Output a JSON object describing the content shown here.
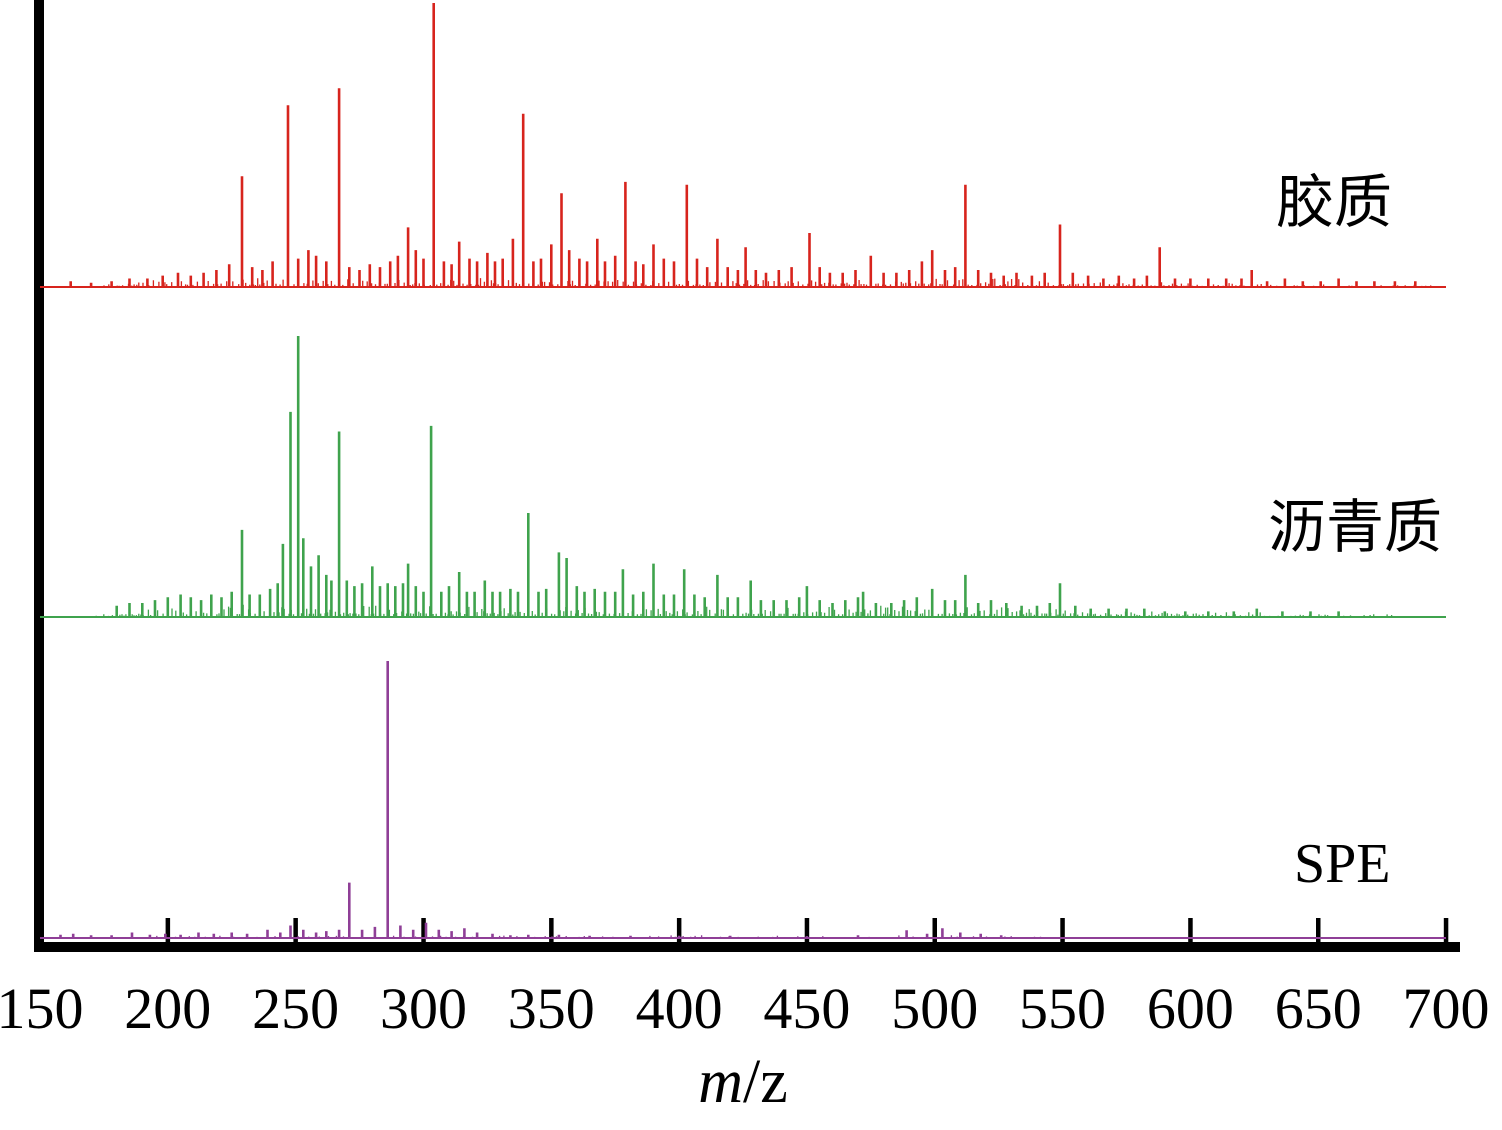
{
  "chart_data": {
    "type": "line",
    "subtype": "stacked-mass-spectra",
    "title": "",
    "xlabel": "m/z",
    "ylabel": "",
    "x_range": [
      150,
      700
    ],
    "x_ticks": [
      150,
      200,
      250,
      300,
      350,
      400,
      450,
      500,
      550,
      600,
      650,
      700
    ],
    "grid": false,
    "axis_color": "#000000",
    "legend_position": "right-inline",
    "series": [
      {
        "name": "胶质",
        "color": "#d7241d",
        "label_color": "#000000",
        "base_peak_mz": 304,
        "noise": {
          "seed": 7,
          "start": 160,
          "end": 695,
          "step": 1.2,
          "max": 0.035
        },
        "peaks": [
          [
            162,
            0.02
          ],
          [
            170,
            0.015
          ],
          [
            178,
            0.02
          ],
          [
            185,
            0.03
          ],
          [
            192,
            0.03
          ],
          [
            198,
            0.04
          ],
          [
            204,
            0.05
          ],
          [
            209,
            0.04
          ],
          [
            214,
            0.05
          ],
          [
            219,
            0.06
          ],
          [
            224,
            0.08
          ],
          [
            229,
            0.39
          ],
          [
            233,
            0.07
          ],
          [
            237,
            0.06
          ],
          [
            241,
            0.09
          ],
          [
            247,
            0.64
          ],
          [
            251,
            0.1
          ],
          [
            255,
            0.13
          ],
          [
            258,
            0.11
          ],
          [
            262,
            0.09
          ],
          [
            267,
            0.7
          ],
          [
            271,
            0.07
          ],
          [
            275,
            0.06
          ],
          [
            279,
            0.08
          ],
          [
            283,
            0.07
          ],
          [
            287,
            0.09
          ],
          [
            290,
            0.11
          ],
          [
            294,
            0.21
          ],
          [
            297,
            0.13
          ],
          [
            300,
            0.1
          ],
          [
            304,
            1.0
          ],
          [
            308,
            0.09
          ],
          [
            311,
            0.08
          ],
          [
            314,
            0.16
          ],
          [
            318,
            0.1
          ],
          [
            321,
            0.09
          ],
          [
            325,
            0.12
          ],
          [
            328,
            0.09
          ],
          [
            331,
            0.1
          ],
          [
            335,
            0.17
          ],
          [
            339,
            0.61
          ],
          [
            343,
            0.09
          ],
          [
            346,
            0.1
          ],
          [
            350,
            0.15
          ],
          [
            354,
            0.33
          ],
          [
            357,
            0.13
          ],
          [
            361,
            0.1
          ],
          [
            364,
            0.09
          ],
          [
            368,
            0.17
          ],
          [
            371,
            0.09
          ],
          [
            375,
            0.11
          ],
          [
            379,
            0.37
          ],
          [
            383,
            0.09
          ],
          [
            386,
            0.08
          ],
          [
            390,
            0.15
          ],
          [
            394,
            0.1
          ],
          [
            398,
            0.09
          ],
          [
            403,
            0.36
          ],
          [
            407,
            0.1
          ],
          [
            411,
            0.07
          ],
          [
            415,
            0.17
          ],
          [
            419,
            0.07
          ],
          [
            423,
            0.06
          ],
          [
            426,
            0.14
          ],
          [
            430,
            0.06
          ],
          [
            434,
            0.05
          ],
          [
            439,
            0.06
          ],
          [
            444,
            0.07
          ],
          [
            451,
            0.19
          ],
          [
            455,
            0.07
          ],
          [
            459,
            0.05
          ],
          [
            464,
            0.05
          ],
          [
            469,
            0.06
          ],
          [
            475,
            0.11
          ],
          [
            480,
            0.05
          ],
          [
            485,
            0.05
          ],
          [
            490,
            0.06
          ],
          [
            495,
            0.09
          ],
          [
            499,
            0.13
          ],
          [
            504,
            0.06
          ],
          [
            508,
            0.07
          ],
          [
            512,
            0.36
          ],
          [
            517,
            0.06
          ],
          [
            522,
            0.05
          ],
          [
            527,
            0.04
          ],
          [
            532,
            0.05
          ],
          [
            538,
            0.04
          ],
          [
            543,
            0.05
          ],
          [
            549,
            0.22
          ],
          [
            554,
            0.05
          ],
          [
            560,
            0.04
          ],
          [
            566,
            0.03
          ],
          [
            572,
            0.04
          ],
          [
            578,
            0.03
          ],
          [
            583,
            0.04
          ],
          [
            588,
            0.14
          ],
          [
            594,
            0.03
          ],
          [
            600,
            0.03
          ],
          [
            607,
            0.03
          ],
          [
            614,
            0.03
          ],
          [
            620,
            0.03
          ],
          [
            624,
            0.06
          ],
          [
            630,
            0.02
          ],
          [
            637,
            0.03
          ],
          [
            644,
            0.02
          ],
          [
            651,
            0.02
          ],
          [
            658,
            0.03
          ],
          [
            665,
            0.02
          ],
          [
            672,
            0.02
          ],
          [
            680,
            0.02
          ],
          [
            688,
            0.02
          ]
        ]
      },
      {
        "name": "沥青质",
        "color": "#3fa34d",
        "label_color": "#000000",
        "base_peak_mz": 251,
        "noise": {
          "seed": 13,
          "start": 172,
          "end": 680,
          "step": 1.1,
          "max": 0.045
        },
        "peaks": [
          [
            180,
            0.04
          ],
          [
            185,
            0.05
          ],
          [
            190,
            0.05
          ],
          [
            195,
            0.06
          ],
          [
            200,
            0.07
          ],
          [
            205,
            0.08
          ],
          [
            209,
            0.07
          ],
          [
            213,
            0.06
          ],
          [
            217,
            0.08
          ],
          [
            221,
            0.07
          ],
          [
            225,
            0.09
          ],
          [
            229,
            0.31
          ],
          [
            232,
            0.08
          ],
          [
            236,
            0.08
          ],
          [
            240,
            0.1
          ],
          [
            243,
            0.12
          ],
          [
            245,
            0.26
          ],
          [
            248,
            0.73
          ],
          [
            251,
            1.0
          ],
          [
            253,
            0.28
          ],
          [
            256,
            0.18
          ],
          [
            259,
            0.22
          ],
          [
            262,
            0.15
          ],
          [
            264,
            0.13
          ],
          [
            267,
            0.66
          ],
          [
            270,
            0.13
          ],
          [
            273,
            0.11
          ],
          [
            276,
            0.12
          ],
          [
            280,
            0.18
          ],
          [
            283,
            0.11
          ],
          [
            286,
            0.12
          ],
          [
            289,
            0.11
          ],
          [
            292,
            0.12
          ],
          [
            294,
            0.19
          ],
          [
            297,
            0.11
          ],
          [
            300,
            0.09
          ],
          [
            303,
            0.68
          ],
          [
            307,
            0.09
          ],
          [
            310,
            0.11
          ],
          [
            314,
            0.16
          ],
          [
            317,
            0.09
          ],
          [
            320,
            0.09
          ],
          [
            324,
            0.13
          ],
          [
            327,
            0.09
          ],
          [
            330,
            0.09
          ],
          [
            334,
            0.1
          ],
          [
            337,
            0.09
          ],
          [
            341,
            0.37
          ],
          [
            345,
            0.09
          ],
          [
            348,
            0.1
          ],
          [
            353,
            0.23
          ],
          [
            356,
            0.21
          ],
          [
            360,
            0.11
          ],
          [
            363,
            0.09
          ],
          [
            367,
            0.1
          ],
          [
            371,
            0.09
          ],
          [
            375,
            0.09
          ],
          [
            378,
            0.17
          ],
          [
            382,
            0.08
          ],
          [
            386,
            0.09
          ],
          [
            390,
            0.19
          ],
          [
            394,
            0.08
          ],
          [
            398,
            0.08
          ],
          [
            402,
            0.17
          ],
          [
            406,
            0.08
          ],
          [
            410,
            0.07
          ],
          [
            415,
            0.15
          ],
          [
            419,
            0.07
          ],
          [
            423,
            0.07
          ],
          [
            428,
            0.13
          ],
          [
            432,
            0.06
          ],
          [
            437,
            0.06
          ],
          [
            442,
            0.06
          ],
          [
            447,
            0.07
          ],
          [
            450,
            0.11
          ],
          [
            455,
            0.06
          ],
          [
            460,
            0.05
          ],
          [
            465,
            0.06
          ],
          [
            470,
            0.07
          ],
          [
            472,
            0.09
          ],
          [
            477,
            0.05
          ],
          [
            483,
            0.05
          ],
          [
            488,
            0.06
          ],
          [
            493,
            0.07
          ],
          [
            499,
            0.1
          ],
          [
            504,
            0.06
          ],
          [
            508,
            0.06
          ],
          [
            512,
            0.15
          ],
          [
            517,
            0.05
          ],
          [
            522,
            0.06
          ],
          [
            528,
            0.05
          ],
          [
            534,
            0.04
          ],
          [
            540,
            0.04
          ],
          [
            545,
            0.05
          ],
          [
            549,
            0.12
          ],
          [
            555,
            0.04
          ],
          [
            561,
            0.03
          ],
          [
            568,
            0.03
          ],
          [
            575,
            0.03
          ],
          [
            582,
            0.03
          ],
          [
            590,
            0.02
          ],
          [
            598,
            0.02
          ],
          [
            607,
            0.02
          ],
          [
            617,
            0.02
          ],
          [
            626,
            0.03
          ],
          [
            636,
            0.02
          ],
          [
            647,
            0.02
          ],
          [
            658,
            0.02
          ]
        ]
      },
      {
        "name": "SPE",
        "color": "#8f3f97",
        "label_color": "#000000",
        "base_peak_mz": 286,
        "noise": {
          "seed": 21,
          "start": 155,
          "end": 545,
          "step": 2.2,
          "max": 0.012
        },
        "peaks": [
          [
            158,
            0.012
          ],
          [
            163,
            0.015
          ],
          [
            170,
            0.01
          ],
          [
            178,
            0.01
          ],
          [
            186,
            0.02
          ],
          [
            193,
            0.012
          ],
          [
            199,
            0.015
          ],
          [
            205,
            0.012
          ],
          [
            212,
            0.02
          ],
          [
            218,
            0.015
          ],
          [
            225,
            0.02
          ],
          [
            231,
            0.015
          ],
          [
            239,
            0.03
          ],
          [
            244,
            0.02
          ],
          [
            248,
            0.045
          ],
          [
            253,
            0.03
          ],
          [
            258,
            0.02
          ],
          [
            262,
            0.025
          ],
          [
            267,
            0.03
          ],
          [
            271,
            0.2
          ],
          [
            276,
            0.03
          ],
          [
            281,
            0.04
          ],
          [
            286,
            1.0
          ],
          [
            291,
            0.045
          ],
          [
            296,
            0.03
          ],
          [
            301,
            0.055
          ],
          [
            306,
            0.03
          ],
          [
            311,
            0.025
          ],
          [
            316,
            0.035
          ],
          [
            321,
            0.02
          ],
          [
            327,
            0.015
          ],
          [
            334,
            0.01
          ],
          [
            341,
            0.012
          ],
          [
            353,
            0.012
          ],
          [
            365,
            0.008
          ],
          [
            381,
            0.008
          ],
          [
            400,
            0.008
          ],
          [
            420,
            0.008
          ],
          [
            450,
            0.007
          ],
          [
            470,
            0.01
          ],
          [
            489,
            0.028
          ],
          [
            497,
            0.015
          ],
          [
            503,
            0.035
          ],
          [
            510,
            0.02
          ],
          [
            518,
            0.015
          ],
          [
            526,
            0.01
          ]
        ]
      }
    ]
  }
}
